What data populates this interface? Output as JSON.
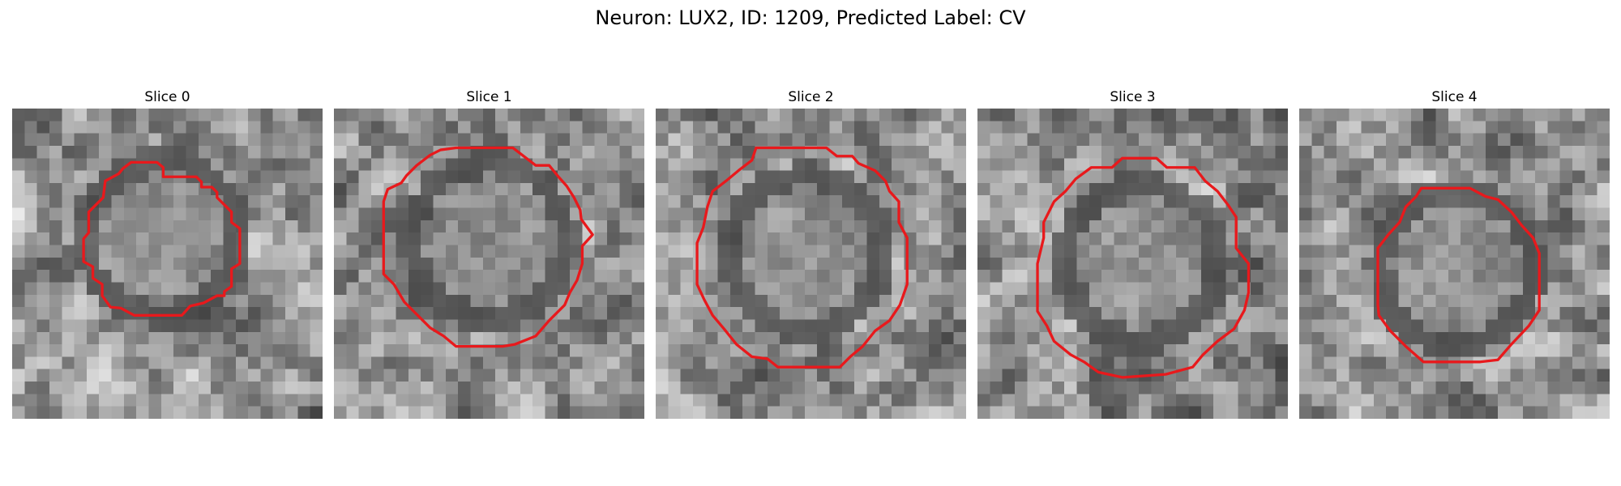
{
  "figure": {
    "title": "Neuron: LUX2, ID: 1209, Predicted Label: CV"
  },
  "contour_color": "#e8191c",
  "panels": [
    {
      "title": "Slice 0",
      "seed": 11,
      "contour": [
        [
          115,
          52
        ],
        [
          140,
          52
        ],
        [
          146,
          57
        ],
        [
          146,
          66
        ],
        [
          178,
          66
        ],
        [
          183,
          71
        ],
        [
          183,
          76
        ],
        [
          193,
          76
        ],
        [
          198,
          81
        ],
        [
          198,
          86
        ],
        [
          212,
          100
        ],
        [
          212,
          110
        ],
        [
          220,
          116
        ],
        [
          220,
          150
        ],
        [
          212,
          155
        ],
        [
          212,
          172
        ],
        [
          205,
          177
        ],
        [
          205,
          181
        ],
        [
          198,
          181
        ],
        [
          185,
          188
        ],
        [
          172,
          191
        ],
        [
          164,
          200
        ],
        [
          118,
          200
        ],
        [
          105,
          193
        ],
        [
          95,
          192
        ],
        [
          87,
          181
        ],
        [
          87,
          170
        ],
        [
          78,
          164
        ],
        [
          78,
          153
        ],
        [
          69,
          148
        ],
        [
          69,
          126
        ],
        [
          74,
          120
        ],
        [
          74,
          100
        ],
        [
          88,
          86
        ],
        [
          90,
          70
        ],
        [
          103,
          63
        ],
        [
          107,
          58
        ]
      ]
    },
    {
      "title": "Slice 1",
      "seed": 23,
      "contour": [
        [
          118,
          38
        ],
        [
          173,
          38
        ],
        [
          195,
          55
        ],
        [
          208,
          55
        ],
        [
          217,
          66
        ],
        [
          225,
          75
        ],
        [
          232,
          86
        ],
        [
          238,
          98
        ],
        [
          239,
          107
        ],
        [
          250,
          122
        ],
        [
          240,
          133
        ],
        [
          240,
          150
        ],
        [
          235,
          166
        ],
        [
          228,
          178
        ],
        [
          223,
          190
        ],
        [
          208,
          205
        ],
        [
          195,
          220
        ],
        [
          175,
          228
        ],
        [
          163,
          230
        ],
        [
          118,
          230
        ],
        [
          106,
          220
        ],
        [
          93,
          212
        ],
        [
          68,
          187
        ],
        [
          58,
          170
        ],
        [
          48,
          160
        ],
        [
          48,
          140
        ],
        [
          48,
          125
        ],
        [
          48,
          90
        ],
        [
          52,
          78
        ],
        [
          65,
          72
        ],
        [
          70,
          65
        ],
        [
          80,
          55
        ],
        [
          93,
          45
        ],
        [
          103,
          40
        ]
      ]
    },
    {
      "title": "Slice 2",
      "seed": 37,
      "contour": [
        [
          97,
          38
        ],
        [
          165,
          38
        ],
        [
          175,
          46
        ],
        [
          190,
          46
        ],
        [
          196,
          53
        ],
        [
          212,
          60
        ],
        [
          222,
          70
        ],
        [
          226,
          80
        ],
        [
          235,
          90
        ],
        [
          235,
          110
        ],
        [
          243,
          125
        ],
        [
          243,
          140
        ],
        [
          243,
          170
        ],
        [
          236,
          190
        ],
        [
          226,
          205
        ],
        [
          212,
          215
        ],
        [
          200,
          230
        ],
        [
          188,
          240
        ],
        [
          178,
          250
        ],
        [
          118,
          250
        ],
        [
          108,
          242
        ],
        [
          93,
          240
        ],
        [
          78,
          228
        ],
        [
          66,
          213
        ],
        [
          55,
          200
        ],
        [
          47,
          185
        ],
        [
          40,
          170
        ],
        [
          40,
          130
        ],
        [
          46,
          115
        ],
        [
          50,
          95
        ],
        [
          55,
          80
        ],
        [
          68,
          70
        ],
        [
          80,
          60
        ],
        [
          93,
          50
        ]
      ]
    },
    {
      "title": "Slice 3",
      "seed": 53,
      "contour": [
        [
          140,
          48
        ],
        [
          173,
          48
        ],
        [
          183,
          57
        ],
        [
          210,
          57
        ],
        [
          220,
          70
        ],
        [
          232,
          80
        ],
        [
          242,
          93
        ],
        [
          250,
          105
        ],
        [
          250,
          135
        ],
        [
          262,
          150
        ],
        [
          262,
          178
        ],
        [
          258,
          195
        ],
        [
          248,
          213
        ],
        [
          232,
          225
        ],
        [
          218,
          238
        ],
        [
          208,
          250
        ],
        [
          182,
          257
        ],
        [
          140,
          260
        ],
        [
          117,
          255
        ],
        [
          103,
          245
        ],
        [
          90,
          238
        ],
        [
          74,
          225
        ],
        [
          67,
          210
        ],
        [
          58,
          196
        ],
        [
          58,
          150
        ],
        [
          64,
          125
        ],
        [
          64,
          110
        ],
        [
          74,
          90
        ],
        [
          85,
          80
        ],
        [
          95,
          68
        ],
        [
          110,
          57
        ],
        [
          130,
          57
        ]
      ]
    },
    {
      "title": "Slice 4",
      "seed": 71,
      "contour": [
        [
          118,
          77
        ],
        [
          165,
          77
        ],
        [
          180,
          85
        ],
        [
          192,
          88
        ],
        [
          205,
          100
        ],
        [
          215,
          113
        ],
        [
          226,
          125
        ],
        [
          232,
          140
        ],
        [
          232,
          195
        ],
        [
          222,
          210
        ],
        [
          205,
          228
        ],
        [
          192,
          243
        ],
        [
          175,
          245
        ],
        [
          120,
          245
        ],
        [
          103,
          230
        ],
        [
          88,
          215
        ],
        [
          77,
          200
        ],
        [
          76,
          190
        ],
        [
          76,
          135
        ],
        [
          86,
          122
        ],
        [
          97,
          110
        ],
        [
          103,
          95
        ],
        [
          113,
          85
        ]
      ]
    }
  ]
}
